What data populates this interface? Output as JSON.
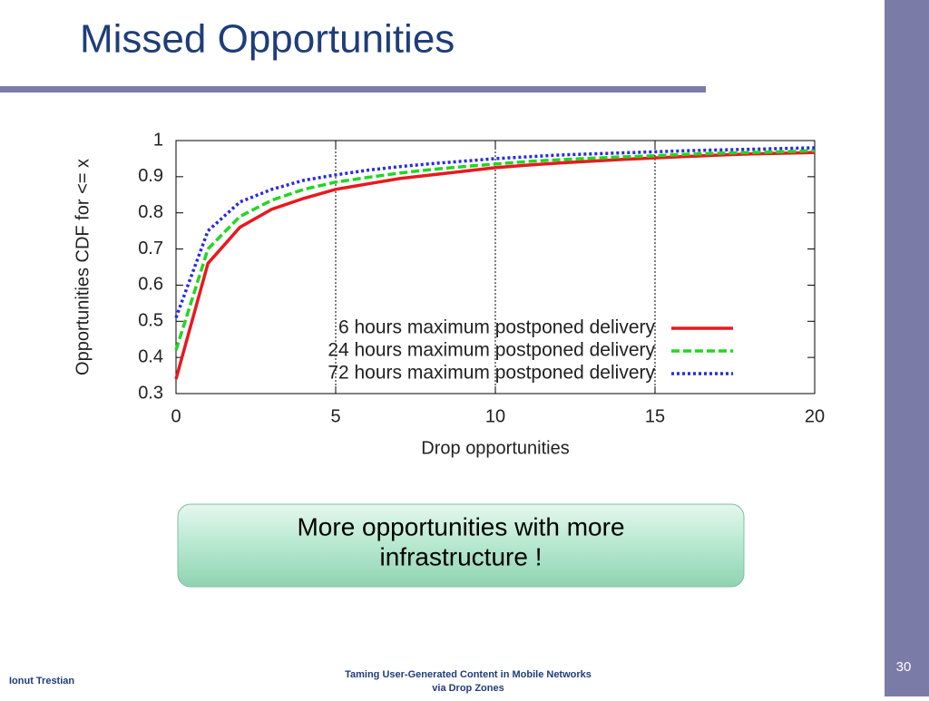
{
  "slide": {
    "title": "Missed Opportunities",
    "callout": [
      "More opportunities with more",
      "infrastructure !"
    ],
    "footer": {
      "author": "Ionut Trestian",
      "center": [
        "Taming User-Generated  Content in Mobile Networks",
        "via Drop Zones"
      ],
      "page": "30"
    }
  },
  "chart_data": {
    "type": "line",
    "x_label": "Drop opportunities",
    "y_label": "Opportunities CDF for <= x",
    "x": [
      0,
      1,
      2,
      3,
      4,
      5,
      6,
      7,
      8,
      9,
      10,
      11,
      12,
      13,
      14,
      15,
      16,
      17,
      18,
      19,
      20
    ],
    "series": [
      {
        "name": "6 hours maximum postponed delivery",
        "color": "#e8191f",
        "style": "solid",
        "values": [
          0.34,
          0.66,
          0.76,
          0.81,
          0.84,
          0.865,
          0.88,
          0.895,
          0.905,
          0.915,
          0.925,
          0.932,
          0.938,
          0.943,
          0.948,
          0.952,
          0.956,
          0.96,
          0.963,
          0.965,
          0.967
        ]
      },
      {
        "name": "24 hours maximum postponed delivery",
        "color": "#22d622",
        "style": "dashed",
        "values": [
          0.42,
          0.7,
          0.79,
          0.835,
          0.865,
          0.885,
          0.898,
          0.91,
          0.92,
          0.928,
          0.935,
          0.942,
          0.947,
          0.951,
          0.955,
          0.958,
          0.962,
          0.965,
          0.967,
          0.969,
          0.972
        ]
      },
      {
        "name": "72 hours maximum postponed delivery",
        "color": "#2a2ae0",
        "style": "dotted",
        "values": [
          0.51,
          0.75,
          0.83,
          0.865,
          0.89,
          0.905,
          0.918,
          0.928,
          0.936,
          0.943,
          0.95,
          0.955,
          0.96,
          0.963,
          0.966,
          0.969,
          0.972,
          0.974,
          0.976,
          0.978,
          0.98
        ]
      }
    ],
    "xlim": [
      0,
      20
    ],
    "xticks": [
      0,
      5,
      10,
      15,
      20
    ],
    "ylim": [
      0.3,
      1
    ],
    "yticks": [
      0.3,
      0.4,
      0.5,
      0.6,
      0.7,
      0.8,
      0.9,
      1
    ],
    "grid": "x",
    "legend": "lower right"
  }
}
